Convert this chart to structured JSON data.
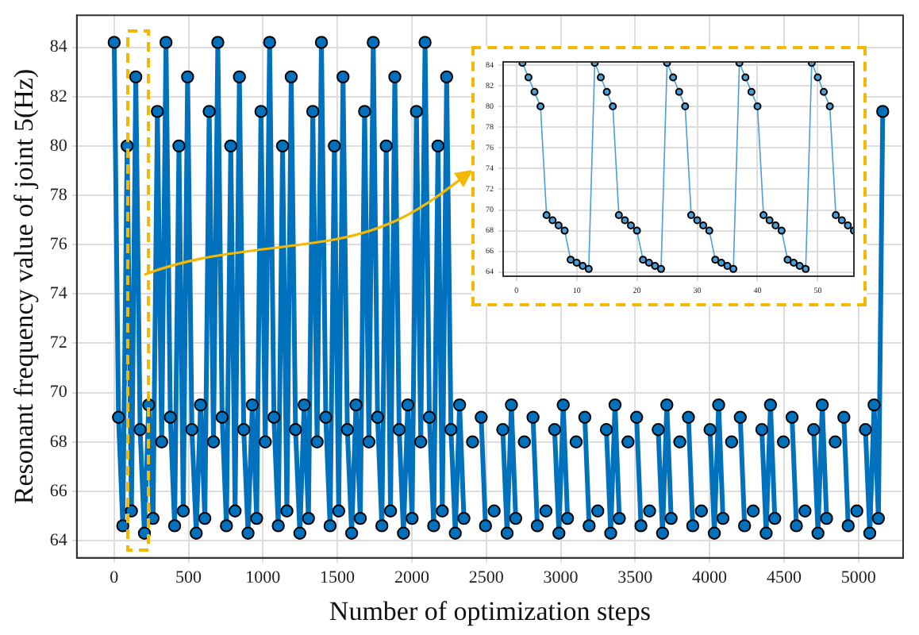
{
  "chart_data": [
    {
      "type": "line",
      "xlabel": "Number of optimization steps",
      "ylabel": "Resonant frequency value of joint 5(Hz)",
      "xlim": [
        -250,
        5300
      ],
      "ylim": [
        63.3,
        85.3
      ],
      "xticks": [
        0,
        500,
        1000,
        1500,
        2000,
        2500,
        3000,
        3500,
        4000,
        4500,
        5000
      ],
      "yticks": [
        64,
        66,
        68,
        70,
        72,
        74,
        76,
        78,
        80,
        82,
        84
      ],
      "grid": true,
      "marker": "circle",
      "line_style": "solid",
      "series": [
        {
          "color": "#0072bd",
          "x": [
            1,
            30,
            59,
            88,
            117,
            146,
            175,
            204,
            233,
            262,
            291,
            320,
            349,
            378,
            407,
            436,
            465,
            494,
            523,
            552,
            581,
            610,
            639,
            668,
            697,
            726,
            755,
            784,
            813,
            842,
            871,
            900,
            929,
            958,
            987,
            1016,
            1045,
            1074,
            1103,
            1132,
            1161,
            1190,
            1219,
            1248,
            1277,
            1306,
            1335,
            1364,
            1393,
            1422,
            1451,
            1480,
            1509,
            1538,
            1567,
            1596,
            1625,
            1654,
            1683,
            1712,
            1741,
            1770,
            1799,
            1828,
            1857,
            1886,
            1915,
            1944,
            1973,
            2002,
            2031,
            2060,
            2089,
            2118,
            2147,
            2176,
            2205,
            2234,
            2263,
            2292,
            2321,
            2350,
            2379,
            2408,
            2437,
            2466,
            2495,
            2524,
            2553,
            2582,
            2611,
            2640,
            2669,
            2698,
            2727,
            2756,
            2785,
            2814,
            2843,
            2872,
            2901,
            2930,
            2959,
            2988,
            3017,
            3046,
            3075,
            3104,
            3133,
            3162,
            3191,
            3220,
            3249,
            3278,
            3307,
            3336,
            3365,
            3394,
            3423,
            3452,
            3481,
            3510,
            3539,
            3568,
            3597,
            3626,
            3655,
            3684,
            3713,
            3742,
            3771,
            3800,
            3829,
            3858,
            3887,
            3916,
            3945,
            3974,
            4003,
            4032,
            4061,
            4090,
            4119,
            4148,
            4177,
            4206,
            4235,
            4264,
            4293,
            4322,
            4351,
            4380,
            4409,
            4438,
            4467,
            4496,
            4525,
            4554,
            4583,
            4612,
            4641,
            4670,
            4699,
            4728,
            4757,
            4786,
            4815,
            4844,
            4873,
            4902,
            4931,
            4960,
            4989,
            5018,
            5047,
            5076,
            5105,
            5134,
            5163
          ],
          "values": [
            84.2,
            69,
            64.6,
            80,
            65.2,
            82.8,
            68.5,
            64.3,
            69.5,
            64.9,
            81.4,
            68,
            84.2,
            69,
            64.6,
            80,
            65.2,
            82.8,
            68.5,
            64.3,
            69.5,
            64.9,
            81.4,
            68,
            84.2,
            69,
            64.6,
            80,
            65.2,
            82.8,
            68.5,
            64.3,
            69.5,
            64.9,
            81.4,
            68,
            84.2,
            69,
            64.6,
            80,
            65.2,
            82.8,
            68.5,
            64.3,
            69.5,
            64.9,
            81.4,
            68,
            84.2,
            69,
            64.6,
            80,
            65.2,
            82.8,
            68.5,
            64.3,
            69.5,
            64.9,
            81.4,
            68,
            84.2,
            69,
            64.6,
            80,
            65.2,
            82.8,
            68.5,
            64.3,
            69.5,
            64.9,
            81.4,
            68,
            84.2,
            69,
            64.6,
            80,
            65.2,
            82.8,
            68.5,
            64.3,
            69.5,
            64.9,
            null,
            68,
            null,
            69,
            64.6,
            null,
            65.2,
            null,
            68.5,
            64.3,
            69.5,
            64.9,
            null,
            68,
            null,
            69,
            64.6,
            null,
            65.2,
            null,
            68.5,
            64.3,
            69.5,
            64.9,
            null,
            68,
            null,
            69,
            64.6,
            null,
            65.2,
            null,
            68.5,
            64.3,
            69.5,
            64.9,
            null,
            68,
            null,
            69,
            64.6,
            null,
            65.2,
            null,
            68.5,
            64.3,
            69.5,
            64.9,
            null,
            68,
            null,
            69,
            64.6,
            null,
            65.2,
            null,
            68.5,
            64.3,
            69.5,
            64.9,
            null,
            68,
            null,
            69,
            64.6,
            null,
            65.2,
            null,
            68.5,
            64.3,
            69.5,
            64.9,
            null,
            68,
            null,
            69,
            64.6,
            null,
            65.2,
            null,
            68.5,
            64.3,
            69.5,
            64.9,
            null,
            68,
            null,
            69,
            64.6,
            null,
            65.2,
            null,
            68.5,
            64.3,
            69.5,
            64.9,
            81.4
          ]
        }
      ]
    },
    {
      "type": "line",
      "xlim": [
        -2.2,
        56
      ],
      "ylim": [
        63.6,
        84.3
      ],
      "xticks": [
        0,
        10,
        20,
        30,
        40,
        50
      ],
      "yticks": [
        64,
        66,
        68,
        70,
        72,
        74,
        76,
        78,
        80,
        82,
        84
      ],
      "grid": true,
      "marker": "circle",
      "line_style": "solid",
      "series": [
        {
          "color": "#4a9fd8",
          "x": [
            1,
            2,
            3,
            4,
            5,
            6,
            7,
            8,
            9,
            10,
            11,
            12,
            13,
            14,
            15,
            16,
            17,
            18,
            19,
            20,
            21,
            22,
            23,
            24,
            25,
            26,
            27,
            28,
            29,
            30,
            31,
            32,
            33,
            34,
            35,
            36,
            37,
            38,
            39,
            40,
            41,
            42,
            43,
            44,
            45,
            46,
            47,
            48,
            49,
            50,
            51,
            52,
            53,
            54,
            55,
            56
          ],
          "values": [
            84.2,
            82.8,
            81.4,
            80,
            69.5,
            69,
            68.5,
            68,
            65.2,
            64.9,
            64.6,
            64.3,
            84.2,
            82.8,
            81.4,
            80,
            69.5,
            69,
            68.5,
            68,
            65.2,
            64.9,
            64.6,
            64.3,
            84.2,
            82.8,
            81.4,
            80,
            69.5,
            69,
            68.5,
            68,
            65.2,
            64.9,
            64.6,
            64.3,
            84.2,
            82.8,
            81.4,
            80,
            69.5,
            69,
            68.5,
            68,
            65.2,
            64.9,
            64.6,
            64.3,
            84.2,
            82.8,
            81.4,
            80,
            69.5,
            69,
            68.5,
            68
          ]
        }
      ]
    }
  ]
}
